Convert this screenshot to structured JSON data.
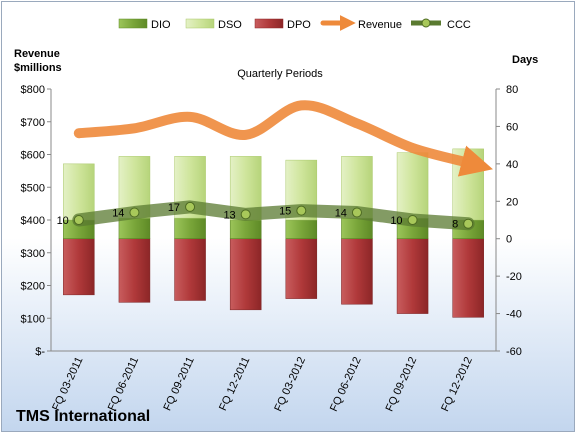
{
  "chart_data": {
    "type": "bar",
    "title": "Quarterly Periods",
    "company": "TMS International",
    "left_axis_label": "Revenue $millions",
    "right_axis_label": "Days",
    "categories": [
      "FQ 03-2011",
      "FQ 06-2011",
      "FQ 09-2011",
      "FQ 12-2011",
      "FQ 03-2012",
      "FQ 06-2012",
      "FQ 09-2012",
      "FQ 12-2012"
    ],
    "left_ticks": [
      "$800",
      "$700",
      "$600",
      "$500",
      "$400",
      "$300",
      "$200",
      "$100",
      "$-"
    ],
    "right_ticks": [
      "80",
      "60",
      "40",
      "20",
      "0",
      "-20",
      "-40",
      "-60"
    ],
    "left_range": [
      0,
      800
    ],
    "right_range": [
      -60,
      80
    ],
    "legend": [
      "DIO",
      "DSO",
      "DPO",
      "Revenue",
      "CCC"
    ],
    "legend_position": "top",
    "grid": false,
    "series": [
      {
        "name": "DIO",
        "axis": "days",
        "values": [
          10,
          11,
          11,
          10,
          10,
          11,
          11,
          10
        ]
      },
      {
        "name": "DSO",
        "axis": "days",
        "values": [
          30,
          33,
          33,
          34,
          32,
          33,
          35,
          38
        ]
      },
      {
        "name": "DPO",
        "axis": "days",
        "values": [
          -30,
          -34,
          -33,
          -38,
          -32,
          -35,
          -40,
          -42
        ]
      },
      {
        "name": "Revenue",
        "axis": "revenue",
        "values": [
          665,
          680,
          715,
          660,
          750,
          695,
          620,
          575
        ]
      },
      {
        "name": "CCC",
        "axis": "days",
        "values": [
          10,
          14,
          17,
          13,
          15,
          14,
          10,
          8
        ]
      }
    ],
    "colors": {
      "dio": "#7aa63a",
      "dso": "#cfe59c",
      "dpo": "#b0393a",
      "revenue": "#ee8a3b",
      "ccc": "#5a7a30"
    }
  }
}
